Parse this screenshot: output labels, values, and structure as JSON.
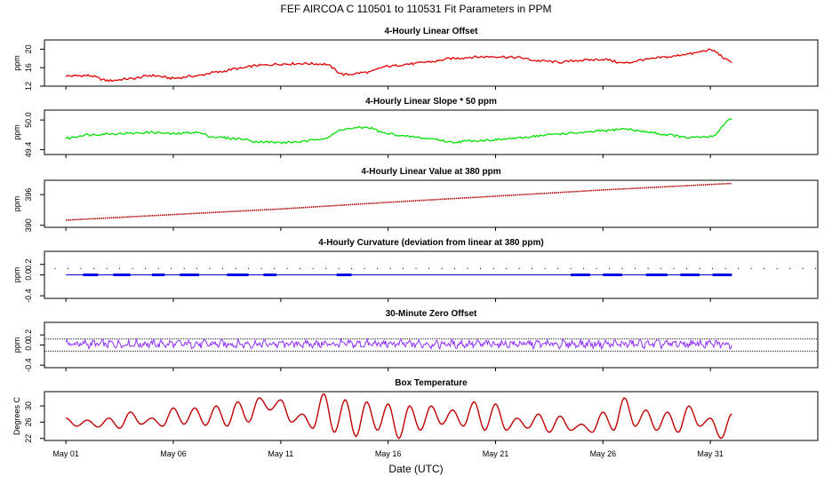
{
  "figure": {
    "title": "FEF   AIRCOA C   110501 to 110531   Fit Parameters in PPM",
    "xlabel": "Date (UTC)"
  },
  "chart_data": [
    {
      "type": "line",
      "title": "4-Hourly Linear Offset",
      "ylabel": "ppm",
      "ylim": [
        12,
        22
      ],
      "yticks": [
        "12",
        "16",
        "20"
      ],
      "xlim": [
        -1,
        35
      ],
      "xticks": [
        "May 01",
        "May 06",
        "May 11",
        "May 16",
        "May 21",
        "May 26",
        "May 31"
      ],
      "color": "#e00000",
      "series": [
        {
          "x": [
            0,
            1,
            2,
            3,
            4,
            5,
            6,
            7,
            8,
            9,
            10,
            11,
            12,
            13,
            14,
            15,
            16,
            17,
            18,
            19,
            20,
            21,
            22,
            23,
            24,
            25,
            26,
            27,
            28,
            29,
            30,
            31
          ],
          "values": [
            14.2,
            14.3,
            13.2,
            13.6,
            14.3,
            13.7,
            14.2,
            15.0,
            15.8,
            16.5,
            16.8,
            16.9,
            16.8,
            14.5,
            15.0,
            16.3,
            16.8,
            17.3,
            18.0,
            18.3,
            18.4,
            18.2,
            17.5,
            17.2,
            17.6,
            17.8,
            17.0,
            17.8,
            18.3,
            19.0,
            19.8,
            17.3
          ]
        }
      ]
    },
    {
      "type": "line",
      "title": "4-Hourly Linear Slope * 50 ppm",
      "ylabel": "ppm",
      "ylim": [
        49.3,
        50.2
      ],
      "yticks": [
        "49.4",
        "50.0"
      ],
      "xlim": [
        -1,
        35
      ],
      "xticks": [
        "May 01",
        "May 06",
        "May 11",
        "May 16",
        "May 21",
        "May 26",
        "May 31"
      ],
      "color": "#00e000",
      "series": [
        {
          "x": [
            0,
            1,
            2,
            3,
            4,
            5,
            6,
            7,
            8,
            9,
            10,
            11,
            12,
            13,
            14,
            15,
            16,
            17,
            18,
            19,
            20,
            21,
            22,
            23,
            24,
            25,
            26,
            27,
            28,
            29,
            30,
            31
          ],
          "values": [
            49.63,
            49.7,
            49.72,
            49.73,
            49.75,
            49.72,
            49.75,
            49.65,
            49.62,
            49.56,
            49.54,
            49.56,
            49.63,
            49.82,
            49.85,
            49.72,
            49.66,
            49.62,
            49.55,
            49.58,
            49.6,
            49.63,
            49.68,
            49.72,
            49.74,
            49.78,
            49.82,
            49.76,
            49.7,
            49.64,
            49.66,
            50.02
          ]
        }
      ]
    },
    {
      "type": "line",
      "title": "4-Hourly Linear Value at 380 ppm",
      "ylabel": "ppm",
      "ylim": [
        389.6,
        398.8
      ],
      "yticks": [
        "390",
        "396"
      ],
      "xlim": [
        -1,
        35
      ],
      "xticks": [
        "May 01",
        "May 06",
        "May 11",
        "May 16",
        "May 21",
        "May 26",
        "May 31"
      ],
      "color": "#b00000",
      "series": [
        {
          "x": [
            0,
            5,
            10,
            15,
            20,
            25,
            31
          ],
          "values": [
            391.0,
            392.1,
            393.2,
            394.5,
            395.7,
            396.9,
            398.2
          ]
        }
      ]
    },
    {
      "type": "line",
      "title": "4-Hourly Curvature (deviation from linear at 380 ppm)",
      "ylabel": "ppm",
      "ylim": [
        -0.45,
        0.45
      ],
      "yticks": [
        "-0.4",
        "0.0",
        "0.2"
      ],
      "xlim": [
        -1,
        35
      ],
      "xticks": [
        "May 01",
        "May 06",
        "May 11",
        "May 16",
        "May 21",
        "May 26",
        "May 31"
      ],
      "color": "#0000e0",
      "series": [
        {
          "x": [
            0,
            31
          ],
          "values": [
            0.0,
            0.0
          ]
        }
      ]
    },
    {
      "type": "line",
      "title": "30-Minute Zero Offset",
      "ylabel": "ppm",
      "ylim": [
        -0.45,
        0.45
      ],
      "yticks": [
        "-0.4",
        "0.0",
        "0.2"
      ],
      "xlim": [
        -1,
        35
      ],
      "xticks": [
        "May 01",
        "May 06",
        "May 11",
        "May 16",
        "May 21",
        "May 26",
        "May 31"
      ],
      "color": "#9030ff",
      "series": [
        {
          "x": [
            0,
            31
          ],
          "values": [
            0.0,
            0.0
          ]
        }
      ]
    },
    {
      "type": "line",
      "title": "Box Temperature",
      "ylabel": "Degrees C",
      "ylim": [
        21.5,
        33.5
      ],
      "yticks": [
        "22",
        "26",
        "30"
      ],
      "xlim": [
        -1,
        35
      ],
      "xticks": [
        "May 01",
        "May 06",
        "May 11",
        "May 16",
        "May 21",
        "May 26",
        "May 31"
      ],
      "color": "#c00000",
      "series": [
        {
          "x": [
            0,
            0.5,
            1,
            1.5,
            2,
            2.5,
            3,
            3.5,
            4,
            4.5,
            5,
            5.5,
            6,
            6.5,
            7,
            7.5,
            8,
            8.5,
            9,
            9.5,
            10,
            10.5,
            11,
            11.5,
            12,
            12.5,
            13,
            13.5,
            14,
            14.5,
            15,
            15.5,
            16,
            16.5,
            17,
            17.5,
            18,
            18.5,
            19,
            19.5,
            20,
            20.5,
            21,
            21.5,
            22,
            22.5,
            23,
            23.5,
            24,
            24.5,
            25,
            25.5,
            26,
            26.5,
            27,
            27.5,
            28,
            28.5,
            29,
            29.5,
            30,
            30.5,
            31
          ],
          "values": [
            27.0,
            25.0,
            26.5,
            24.8,
            27.0,
            24.5,
            28.5,
            25.5,
            27.0,
            25.0,
            29.5,
            25.5,
            29.5,
            25.2,
            30.0,
            25.0,
            31.0,
            26.0,
            32.0,
            29.0,
            31.5,
            26.0,
            28.0,
            24.5,
            33.0,
            23.5,
            31.5,
            22.5,
            31.0,
            24.0,
            30.5,
            22.0,
            30.0,
            24.0,
            30.0,
            25.5,
            29.0,
            25.0,
            31.0,
            24.0,
            30.5,
            24.0,
            27.0,
            24.5,
            28.0,
            23.5,
            27.5,
            24.0,
            25.5,
            23.5,
            28.5,
            24.0,
            32.0,
            25.0,
            29.0,
            24.0,
            28.5,
            23.5,
            30.0,
            25.0,
            27.0,
            22.0,
            28.0
          ]
        }
      ]
    }
  ]
}
